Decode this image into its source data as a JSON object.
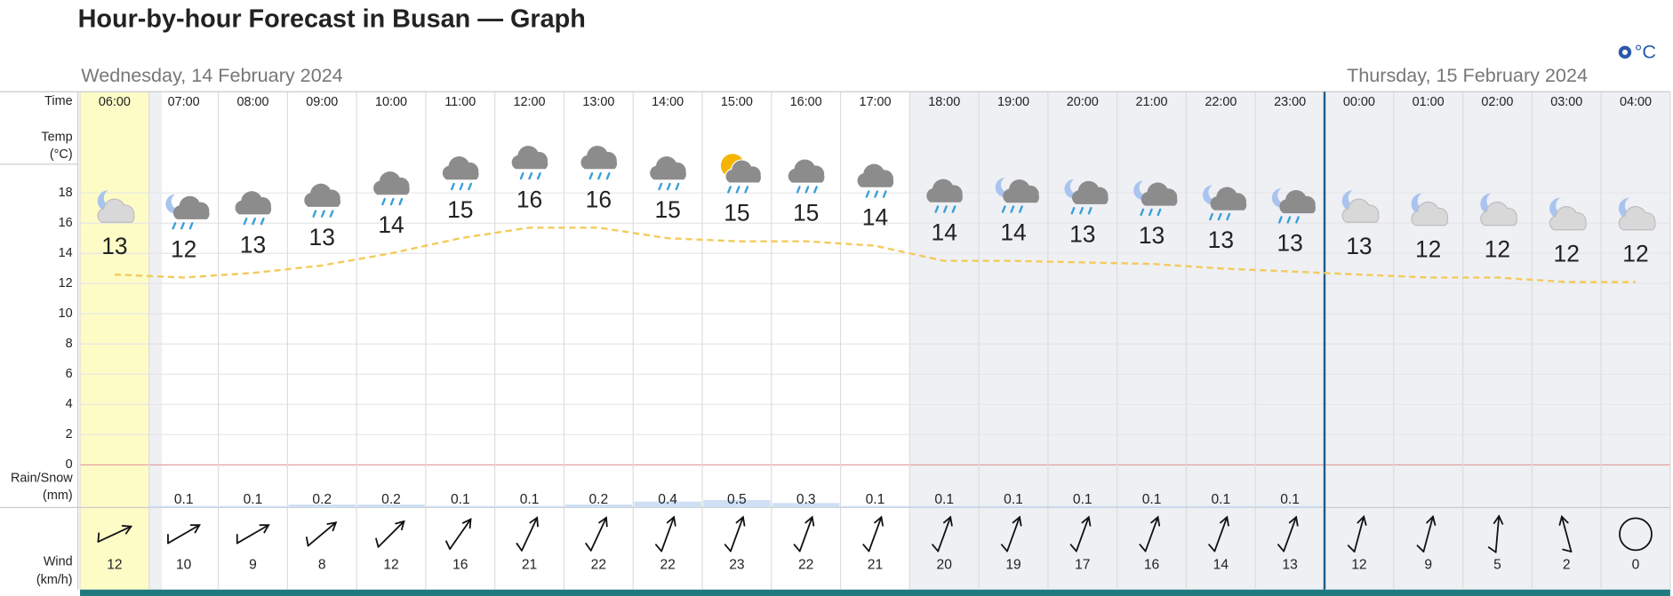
{
  "header": {
    "title": "Hour-by-hour Forecast in Busan — Graph",
    "unit": "°C"
  },
  "days": [
    "Wednesday, 14 February 2024",
    "Thursday, 15 February 2024"
  ],
  "labels": {
    "time": "Time",
    "temp": [
      "Temp",
      "(°C)"
    ],
    "rain": [
      "Rain/Snow",
      "(mm)"
    ],
    "wind": [
      "Wind",
      "(km/h)"
    ]
  },
  "temp_axis": {
    "ylim": [
      0,
      20
    ],
    "yticks": [
      0,
      2,
      4,
      6,
      8,
      10,
      12,
      14,
      16,
      18
    ]
  },
  "hours": {
    "time": [
      "06:00",
      "07:00",
      "08:00",
      "09:00",
      "10:00",
      "11:00",
      "12:00",
      "13:00",
      "14:00",
      "15:00",
      "16:00",
      "17:00",
      "18:00",
      "19:00",
      "20:00",
      "21:00",
      "22:00",
      "23:00",
      "00:00",
      "01:00",
      "02:00",
      "03:00",
      "04:00"
    ],
    "temp": [
      13,
      12,
      13,
      13,
      14,
      15,
      16,
      16,
      15,
      15,
      15,
      14,
      14,
      14,
      13,
      13,
      13,
      13,
      13,
      12,
      12,
      12,
      12
    ],
    "curve": [
      12.6,
      12.4,
      12.7,
      13.2,
      14.0,
      15.0,
      15.7,
      15.7,
      15.0,
      14.8,
      14.8,
      14.5,
      13.5,
      13.5,
      13.4,
      13.3,
      13.0,
      12.8,
      12.6,
      12.4,
      12.4,
      12.1,
      12.1
    ],
    "rain": [
      null,
      0.1,
      0.1,
      0.2,
      0.2,
      0.1,
      0.1,
      0.2,
      0.4,
      0.5,
      0.3,
      0.1,
      0.1,
      0.1,
      0.1,
      0.1,
      0.1,
      0.1,
      null,
      null,
      null,
      null,
      null
    ],
    "wind": [
      12,
      10,
      9,
      8,
      12,
      16,
      21,
      22,
      22,
      23,
      22,
      21,
      20,
      19,
      17,
      16,
      14,
      13,
      12,
      9,
      5,
      2,
      0
    ],
    "wind_dir": [
      65,
      60,
      60,
      50,
      45,
      35,
      25,
      25,
      20,
      20,
      20,
      20,
      20,
      20,
      20,
      20,
      20,
      20,
      15,
      15,
      5,
      345,
      0
    ]
  }
}
